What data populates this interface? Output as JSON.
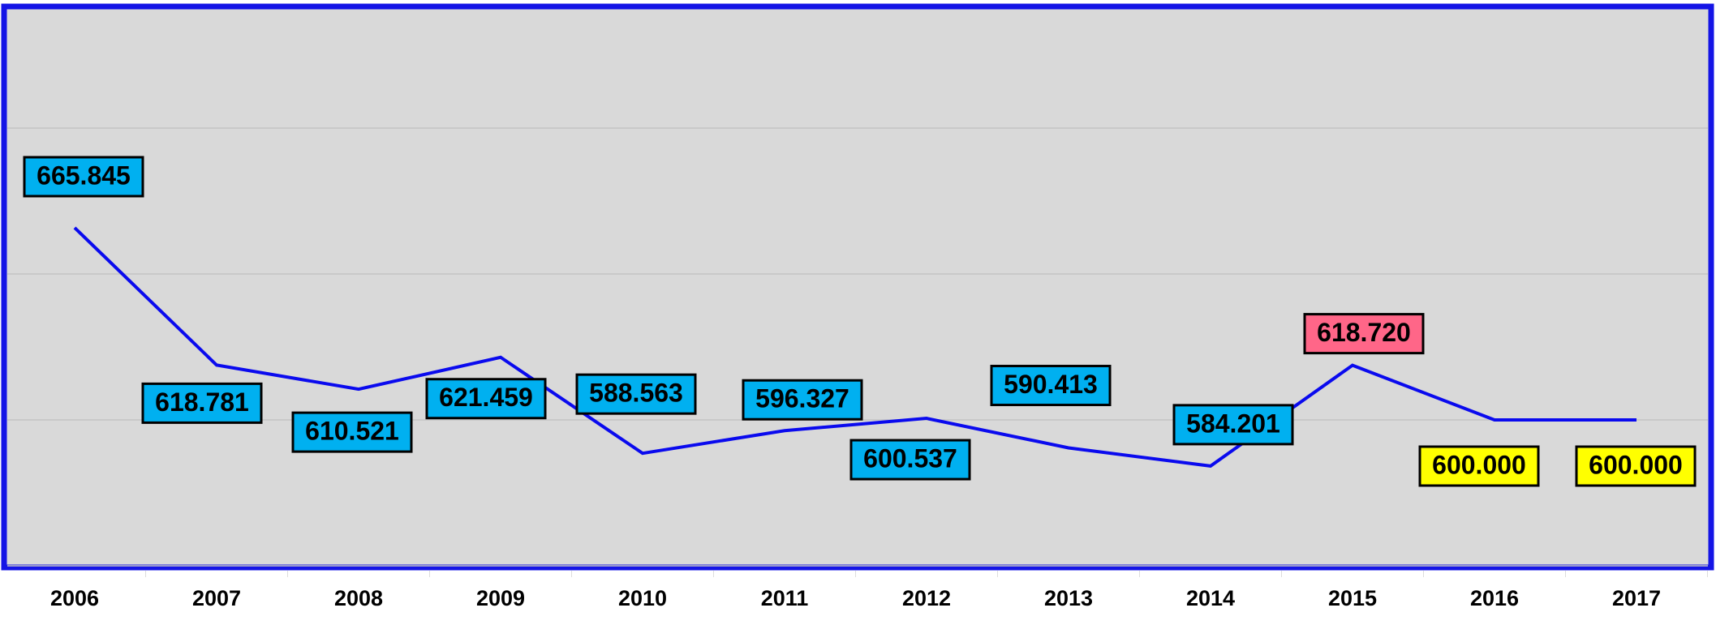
{
  "chart_data": {
    "type": "line",
    "categories": [
      "2006",
      "2007",
      "2008",
      "2009",
      "2010",
      "2011",
      "2012",
      "2013",
      "2014",
      "2015",
      "2016",
      "2017"
    ],
    "series": [
      {
        "color": "#0a0aee",
        "values": [
          665.845,
          618.781,
          610.521,
          621.459,
          588.563,
          596.327,
          600.537,
          590.413,
          584.201,
          618.72,
          600,
          600
        ],
        "value_labels": [
          "665.845",
          "618.781",
          "610.521",
          "621.459",
          "588.563",
          "596.327",
          "600.537",
          "590.413",
          "584.201",
          "618.720",
          "600.000",
          "600.000"
        ],
        "label_colors": [
          "#00b0f0",
          "#00b0f0",
          "#00b0f0",
          "#00b0f0",
          "#00b0f0",
          "#00b0f0",
          "#00b0f0",
          "#00b0f0",
          "#00b0f0",
          "#ff6688",
          "#ffff00",
          "#ffff00"
        ]
      }
    ],
    "ylim": [
      550,
      740
    ],
    "yticks": [
      550,
      600,
      650,
      700
    ],
    "grid": true
  }
}
